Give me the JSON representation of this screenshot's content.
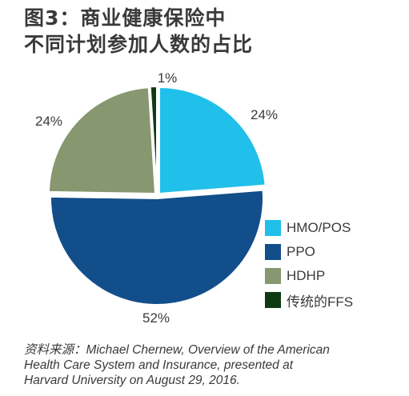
{
  "title": {
    "line1": "图3：商业健康保险中",
    "line2": "不同计划参加人数的占比"
  },
  "chart_data": {
    "type": "pie",
    "slices": [
      {
        "label": "HMO/POS",
        "value": 24,
        "display": "24%",
        "color": "#21c0ea"
      },
      {
        "label": "PPO",
        "value": 52,
        "display": "52%",
        "color": "#124e8a"
      },
      {
        "label": "HDHP",
        "value": 24,
        "display": "24%",
        "color": "#87976f"
      },
      {
        "label": "传统的FFS",
        "value": 1,
        "display": "1%",
        "color": "#0f3b14"
      }
    ],
    "legend_position": "right"
  },
  "source": {
    "line1": "资料来源：Michael Chernew, Overview of the American",
    "line2": "Health Care System and Insurance, presented at",
    "line3": "Harvard University on August 29, 2016."
  }
}
